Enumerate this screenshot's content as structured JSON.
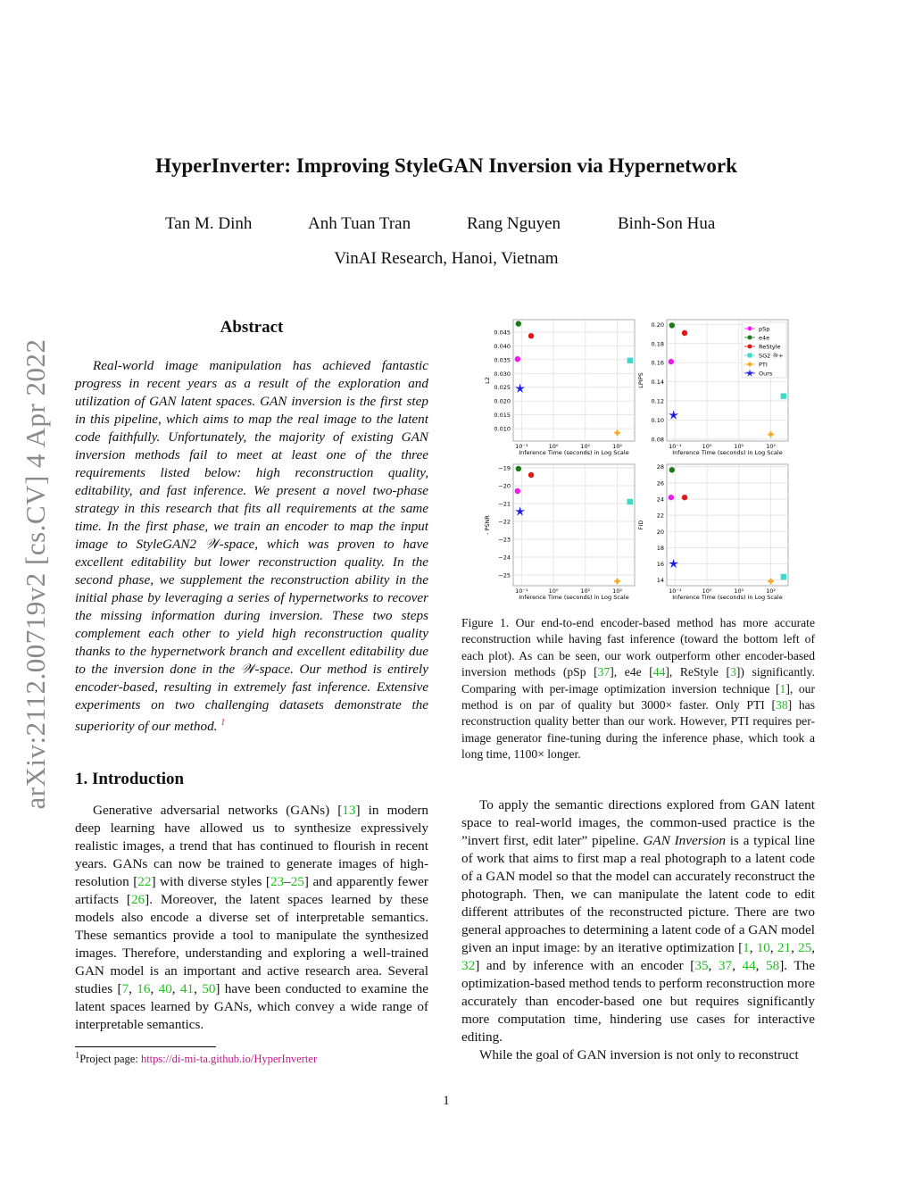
{
  "sidebar_stamp": "arXiv:2112.00719v2  [cs.CV]  4 Apr 2022",
  "title": "HyperInverter: Improving StyleGAN Inversion via Hypernetwork",
  "authors": [
    "Tan M. Dinh",
    "Anh Tuan Tran",
    "Rang Nguyen",
    "Binh-Son Hua"
  ],
  "affiliation": "VinAI Research, Hanoi, Vietnam",
  "abstract": {
    "heading": "Abstract",
    "paragraphs": [
      [
        {
          "t": "Real-world image manipulation has achieved fantastic progress in recent years as a result of the exploration and utilization of GAN latent spaces. GAN inversion is the first step in this pipeline, which aims to map the real image to the latent code faithfully. Unfortunately, the majority of existing GAN inversion methods fail to meet at least one of the three requirements listed below: high reconstruction quality, editability, and fast inference. We present a novel two-phase strategy in this research that fits all requirements at the same time. In the first phase, we train an encoder to map the input image to StyleGAN2 𝒲-space, which was proven to have excellent editability but lower reconstruction quality. In the second phase, we supplement the reconstruction ability in the initial phase by leveraging a series of hypernetworks to recover the missing information during inversion. These two steps complement each other to yield high reconstruction quality thanks to the hypernetwork branch and excellent editability due to the inversion done in the 𝒲-space. Our method is entirely encoder-based, resulting in extremely fast inference. Extensive experiments on two challenging datasets demonstrate the superiority of our method. "
        },
        {
          "f": "1"
        }
      ]
    ]
  },
  "introduction": {
    "heading": "1. Introduction",
    "paragraphs": [
      [
        {
          "t": "Generative adversarial networks (GANs) ["
        },
        {
          "c": "13"
        },
        {
          "t": "] in modern deep learning have allowed us to synthesize expressively realistic images, a trend that has continued to flourish in recent years. GANs can now be trained to generate images of high-resolution ["
        },
        {
          "c": "22"
        },
        {
          "t": "] with diverse styles ["
        },
        {
          "c": "23"
        },
        {
          "t": "–"
        },
        {
          "c": "25"
        },
        {
          "t": "] and apparently fewer artifacts ["
        },
        {
          "c": "26"
        },
        {
          "t": "]. Moreover, the latent spaces learned by these models also encode a diverse set of interpretable semantics. These semantics provide a tool to manipulate the synthesized images. Therefore, understanding and exploring a well-trained GAN model is an important and active research area. Several studies ["
        },
        {
          "c": "7"
        },
        {
          "t": ", "
        },
        {
          "c": "16"
        },
        {
          "t": ", "
        },
        {
          "c": "40"
        },
        {
          "t": ", "
        },
        {
          "c": "41"
        },
        {
          "t": ", "
        },
        {
          "c": "50"
        },
        {
          "t": "] have been conducted to examine the latent spaces learned by GANs, which convey a wide range of interpretable semantics."
        }
      ]
    ]
  },
  "footnote": {
    "mark": "1",
    "text": "Project page: ",
    "link": "https://di-mi-ta.github.io/HyperInverter"
  },
  "figure_caption": [
    {
      "t": "Figure 1.  Our end-to-end encoder-based method has more accurate reconstruction while having fast inference (toward the bottom left of each plot).  As can be seen, our work outperform other encoder-based inversion methods (pSp ["
    },
    {
      "c": "37"
    },
    {
      "t": "], e4e ["
    },
    {
      "c": "44"
    },
    {
      "t": "], ReStyle ["
    },
    {
      "c": "3"
    },
    {
      "t": "]) significantly.  Comparing with per-image optimization inversion technique ["
    },
    {
      "c": "1"
    },
    {
      "t": "], our method is on par of quality but 3000× faster. Only PTI ["
    },
    {
      "c": "38"
    },
    {
      "t": "] has reconstruction quality better than our work. However, PTI requires per-image generator fine-tuning during the inference phase, which took a long time, 1100× longer."
    }
  ],
  "right_column": {
    "paragraphs": [
      [
        {
          "t": "To apply the semantic directions explored from GAN latent space to real-world images, the common-used practice is the ”invert first, edit later” pipeline. "
        },
        {
          "i": "GAN Inversion"
        },
        {
          "t": " is a typical line of work that aims to first map a real photograph to a latent code of a GAN model so that the model can accurately reconstruct the photograph. Then, we can manipulate the latent code to edit different attributes of the reconstructed picture. There are two general approaches to determining a latent code of a GAN model given an input image: by an iterative optimization ["
        },
        {
          "c": "1"
        },
        {
          "t": ", "
        },
        {
          "c": "10"
        },
        {
          "t": ", "
        },
        {
          "c": "21"
        },
        {
          "t": ", "
        },
        {
          "c": "25"
        },
        {
          "t": ", "
        },
        {
          "c": "32"
        },
        {
          "t": "] and by inference with an encoder ["
        },
        {
          "c": "35"
        },
        {
          "t": ", "
        },
        {
          "c": "37"
        },
        {
          "t": ", "
        },
        {
          "c": "44"
        },
        {
          "t": ", "
        },
        {
          "c": "58"
        },
        {
          "t": "]. The optimization-based method tends to perform reconstruction more accurately than encoder-based one but requires significantly more computation time, hindering use cases for interactive editing."
        }
      ],
      [
        {
          "t": "While the goal of GAN inversion is not only to reconstruct"
        }
      ]
    ]
  },
  "page_number": "1",
  "chart_data": [
    {
      "type": "scatter",
      "xlabel": "Inference Time (seconds) in Log Scale",
      "ylabel": "L2",
      "xscale": "log",
      "xlim": [
        0.055,
        350
      ],
      "ylim": [
        0.0055,
        0.0495
      ],
      "yticks": [
        "0.010",
        "0.015",
        "0.020",
        "0.025",
        "0.030",
        "0.035",
        "0.040",
        "0.045"
      ],
      "xticks": [
        "10⁻¹",
        "10⁰",
        "10¹",
        "10²"
      ],
      "grid": true,
      "points": [
        {
          "series": "pSp",
          "x": 0.075,
          "y": 0.0352
        },
        {
          "series": "e4e",
          "x": 0.08,
          "y": 0.048
        },
        {
          "series": "ReStyle",
          "x": 0.2,
          "y": 0.0436
        },
        {
          "series": "SG2 𝒲+",
          "x": 250,
          "y": 0.0347
        },
        {
          "series": "PTI",
          "x": 100,
          "y": 0.0085
        },
        {
          "series": "Ours",
          "x": 0.09,
          "y": 0.0245
        }
      ]
    },
    {
      "type": "scatter",
      "xlabel": "Inference Time (seconds) in Log Scale",
      "ylabel": "LPIPS",
      "xscale": "log",
      "xlim": [
        0.055,
        350
      ],
      "ylim": [
        0.078,
        0.205
      ],
      "yticks": [
        "0.08",
        "0.10",
        "0.12",
        "0.14",
        "0.16",
        "0.18",
        "0.20"
      ],
      "xticks": [
        "10⁻¹",
        "10⁰",
        "10¹",
        "10²"
      ],
      "grid": true,
      "legend": "top-right",
      "points": [
        {
          "series": "pSp",
          "x": 0.075,
          "y": 0.161
        },
        {
          "series": "e4e",
          "x": 0.08,
          "y": 0.199
        },
        {
          "series": "ReStyle",
          "x": 0.2,
          "y": 0.191
        },
        {
          "series": "SG2 𝒲+",
          "x": 250,
          "y": 0.125
        },
        {
          "series": "PTI",
          "x": 100,
          "y": 0.085
        },
        {
          "series": "Ours",
          "x": 0.09,
          "y": 0.105
        }
      ]
    },
    {
      "type": "scatter",
      "xlabel": "Inference Time (seconds) in Log Scale",
      "ylabel": "- PSNR",
      "xscale": "log",
      "xlim": [
        0.055,
        350
      ],
      "ylim": [
        -25.6,
        -18.8
      ],
      "yticks": [
        "−25",
        "−24",
        "−23",
        "−22",
        "−21",
        "−20",
        "−19"
      ],
      "xticks": [
        "10⁻¹",
        "10⁰",
        "10¹",
        "10²"
      ],
      "grid": true,
      "points": [
        {
          "series": "pSp",
          "x": 0.075,
          "y": -20.3
        },
        {
          "series": "e4e",
          "x": 0.08,
          "y": -19.05
        },
        {
          "series": "ReStyle",
          "x": 0.2,
          "y": -19.4
        },
        {
          "series": "SG2 𝒲+",
          "x": 250,
          "y": -20.9
        },
        {
          "series": "PTI",
          "x": 100,
          "y": -25.35
        },
        {
          "series": "Ours",
          "x": 0.09,
          "y": -21.45
        }
      ]
    },
    {
      "type": "scatter",
      "xlabel": "Inference Time (seconds) in Log Scale",
      "ylabel": "FID",
      "xscale": "log",
      "xlim": [
        0.055,
        350
      ],
      "ylim": [
        13.3,
        28.3
      ],
      "yticks": [
        "14",
        "16",
        "18",
        "20",
        "22",
        "24",
        "26",
        "28"
      ],
      "xticks": [
        "10⁻¹",
        "10⁰",
        "10¹",
        "10²"
      ],
      "grid": true,
      "points": [
        {
          "series": "pSp",
          "x": 0.075,
          "y": 24.2
        },
        {
          "series": "e4e",
          "x": 0.08,
          "y": 27.6
        },
        {
          "series": "ReStyle",
          "x": 0.2,
          "y": 24.2
        },
        {
          "series": "SG2 𝒲+",
          "x": 250,
          "y": 14.4
        },
        {
          "series": "PTI",
          "x": 100,
          "y": 13.85
        },
        {
          "series": "Ours",
          "x": 0.09,
          "y": 16.0
        }
      ]
    }
  ],
  "legend": [
    {
      "name": "pSp",
      "color": "#ee1aee",
      "marker": "circle"
    },
    {
      "name": "e4e",
      "color": "#1a7a1a",
      "marker": "circle"
    },
    {
      "name": "ReStyle",
      "color": "#e01818",
      "marker": "circle"
    },
    {
      "name": "SG2 𝒲+",
      "color": "#40d8c8",
      "marker": "square"
    },
    {
      "name": "PTI",
      "color": "#f5a623",
      "marker": "plus"
    },
    {
      "name": "Ours",
      "color": "#1a1ae0",
      "marker": "star"
    }
  ],
  "colors": {
    "citation": "#1fbf1f",
    "link": "#c0188a",
    "stamp": "#8a8a8a"
  }
}
